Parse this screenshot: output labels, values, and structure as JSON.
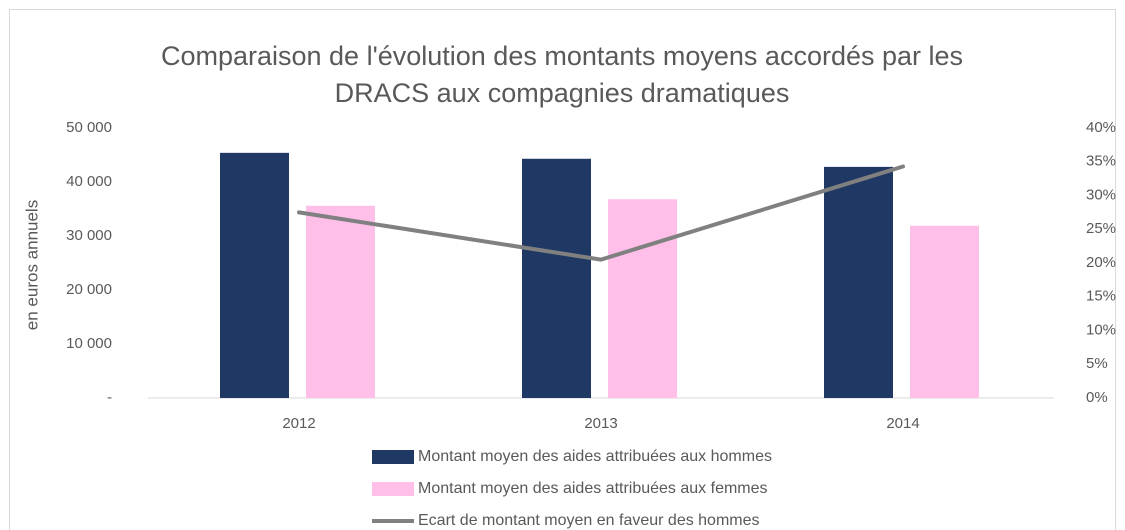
{
  "chart_data": {
    "type": "bar_line",
    "title": "Comparaison de l'évolution des montants moyens accordés par les DRACS aux compagnies dramatiques",
    "y_label": "en euros annuels",
    "categories": [
      "2012",
      "2013",
      "2014"
    ],
    "series": [
      {
        "name": "Montant moyen des aides attribuées aux hommes",
        "color": "#1f3864",
        "type": "bar",
        "values": [
          45400,
          44300,
          42800
        ]
      },
      {
        "name": "Montant moyen des aides attribuées aux femmes",
        "color": "#ffbfe9",
        "type": "bar",
        "values": [
          35600,
          36800,
          31900
        ]
      },
      {
        "name": "Ecart de montant moyen en faveur des hommes",
        "color": "#808080",
        "type": "line",
        "axis": "y2",
        "values": [
          27.5,
          20.5,
          34.3
        ]
      }
    ],
    "ylim": [
      0,
      50000
    ],
    "yticks": [
      {
        "value": 0,
        "label": "-"
      },
      {
        "value": 10000,
        "label": "10 000"
      },
      {
        "value": 20000,
        "label": "20 000"
      },
      {
        "value": 30000,
        "label": "30 000"
      },
      {
        "value": 40000,
        "label": "40 000"
      },
      {
        "value": 50000,
        "label": "50 000"
      }
    ],
    "y2lim": [
      0,
      40
    ],
    "y2ticks": [
      {
        "value": 0,
        "label": "0%"
      },
      {
        "value": 5,
        "label": "5%"
      },
      {
        "value": 10,
        "label": "10%"
      },
      {
        "value": 15,
        "label": "15%"
      },
      {
        "value": 20,
        "label": "20%"
      },
      {
        "value": 25,
        "label": "25%"
      },
      {
        "value": 30,
        "label": "30%"
      },
      {
        "value": 35,
        "label": "35%"
      },
      {
        "value": 40,
        "label": "40%"
      }
    ],
    "grid": false,
    "legend": "bottom"
  }
}
